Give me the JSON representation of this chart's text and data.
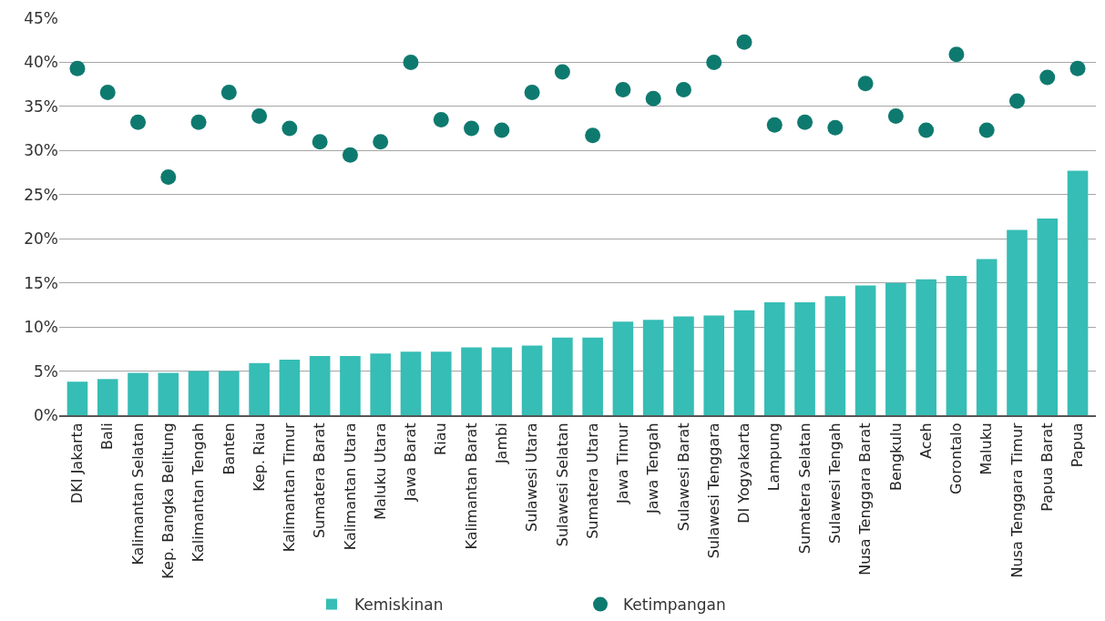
{
  "chart_data": {
    "type": "bar",
    "categories": [
      "DKI Jakarta",
      "Bali",
      "Kalimantan Selatan",
      "Kep. Bangka Belitung",
      "Kalimantan Tengah",
      "Banten",
      "Kep. Riau",
      "Kalimantan Timur",
      "Sumatera Barat",
      "Kalimantan Utara",
      "Maluku Utara",
      "Jawa Barat",
      "Riau",
      "Kalimantan Barat",
      "Jambi",
      "Sulawesi Utara",
      "Sulawesi Selatan",
      "Sumatera Utara",
      "Jawa Timur",
      "Jawa Tengah",
      "Sulawesi Barat",
      "Sulawesi Tenggara",
      "DI Yogyakarta",
      "Lampung",
      "Sumatera Selatan",
      "Sulawesi Tengah",
      "Nusa Tenggara Barat",
      "Bengkulu",
      "Aceh",
      "Gorontalo",
      "Maluku",
      "Nusa Tenggara Timur",
      "Papua Barat",
      "Papua"
    ],
    "series": [
      {
        "name": "Kemiskinan",
        "color": "#36bdb5",
        "values": [
          3.8,
          4.1,
          4.8,
          4.8,
          5.0,
          5.0,
          5.9,
          6.3,
          6.7,
          6.7,
          7.0,
          7.2,
          7.2,
          7.7,
          7.7,
          7.9,
          8.8,
          8.8,
          10.6,
          10.8,
          11.2,
          11.3,
          11.9,
          12.8,
          12.8,
          13.5,
          14.7,
          15.0,
          15.4,
          15.8,
          17.7,
          21.0,
          22.3,
          27.7
        ]
      },
      {
        "name": "Ketimpangan",
        "type": "scatter",
        "color": "#0e7a6f",
        "marker": "circle",
        "values": [
          39.3,
          36.6,
          33.2,
          27.0,
          33.2,
          36.6,
          33.9,
          32.5,
          31.0,
          29.5,
          31.0,
          40.0,
          33.5,
          32.5,
          32.3,
          36.6,
          38.9,
          31.7,
          36.9,
          35.9,
          36.9,
          40.0,
          42.3,
          32.9,
          33.2,
          32.6,
          37.6,
          33.9,
          32.3,
          40.9,
          32.3,
          35.6,
          38.3,
          39.3
        ]
      }
    ],
    "ylim": [
      0,
      45
    ],
    "yticks": [
      {
        "value": 0,
        "label": "0%"
      },
      {
        "value": 5,
        "label": "5%"
      },
      {
        "value": 10,
        "label": "10%"
      },
      {
        "value": 15,
        "label": "15%"
      },
      {
        "value": 20,
        "label": "20%"
      },
      {
        "value": 25,
        "label": "25%"
      },
      {
        "value": 30,
        "label": "30%"
      },
      {
        "value": 35,
        "label": "35%"
      },
      {
        "value": 40,
        "label": "40%"
      },
      {
        "value": 45,
        "label": "45%"
      }
    ],
    "grid": "y",
    "legend": "bottom"
  }
}
